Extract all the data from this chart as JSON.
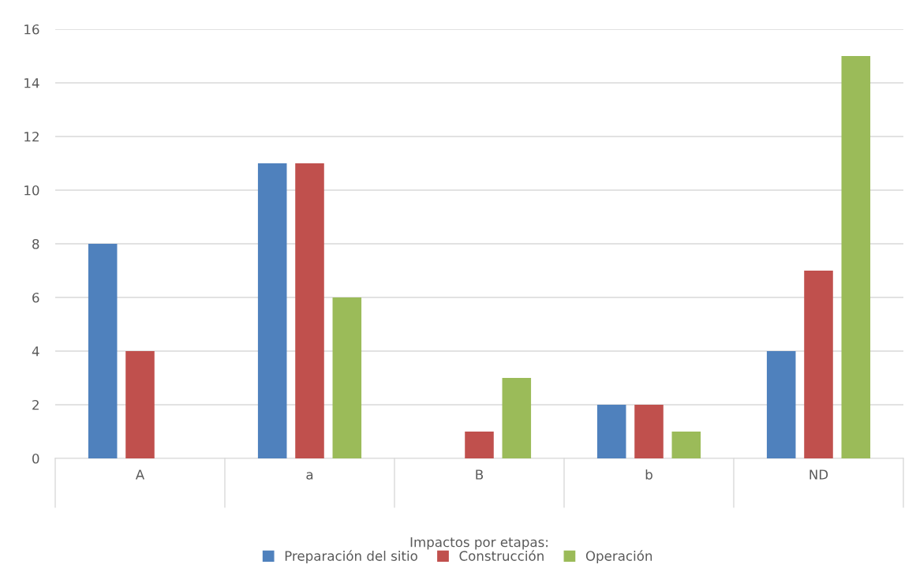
{
  "chart_data": {
    "type": "bar",
    "categories": [
      "A",
      "a",
      "B",
      "b",
      "ND"
    ],
    "xlabel": "Impactos por etapas:",
    "series": [
      {
        "name": "Preparación del sitio",
        "color": "#4f81bd",
        "values": [
          8,
          11,
          0,
          2,
          4
        ]
      },
      {
        "name": "Construcción",
        "color": "#c0504d",
        "values": [
          4,
          11,
          1,
          2,
          7
        ]
      },
      {
        "name": "Operación",
        "color": "#9bbb59",
        "values": [
          0,
          6,
          3,
          1,
          15
        ]
      }
    ],
    "ylim": [
      0,
      16
    ],
    "yticks": [
      0,
      2,
      4,
      6,
      8,
      10,
      12,
      14,
      16
    ],
    "grid": "y",
    "legend": "bottom"
  }
}
